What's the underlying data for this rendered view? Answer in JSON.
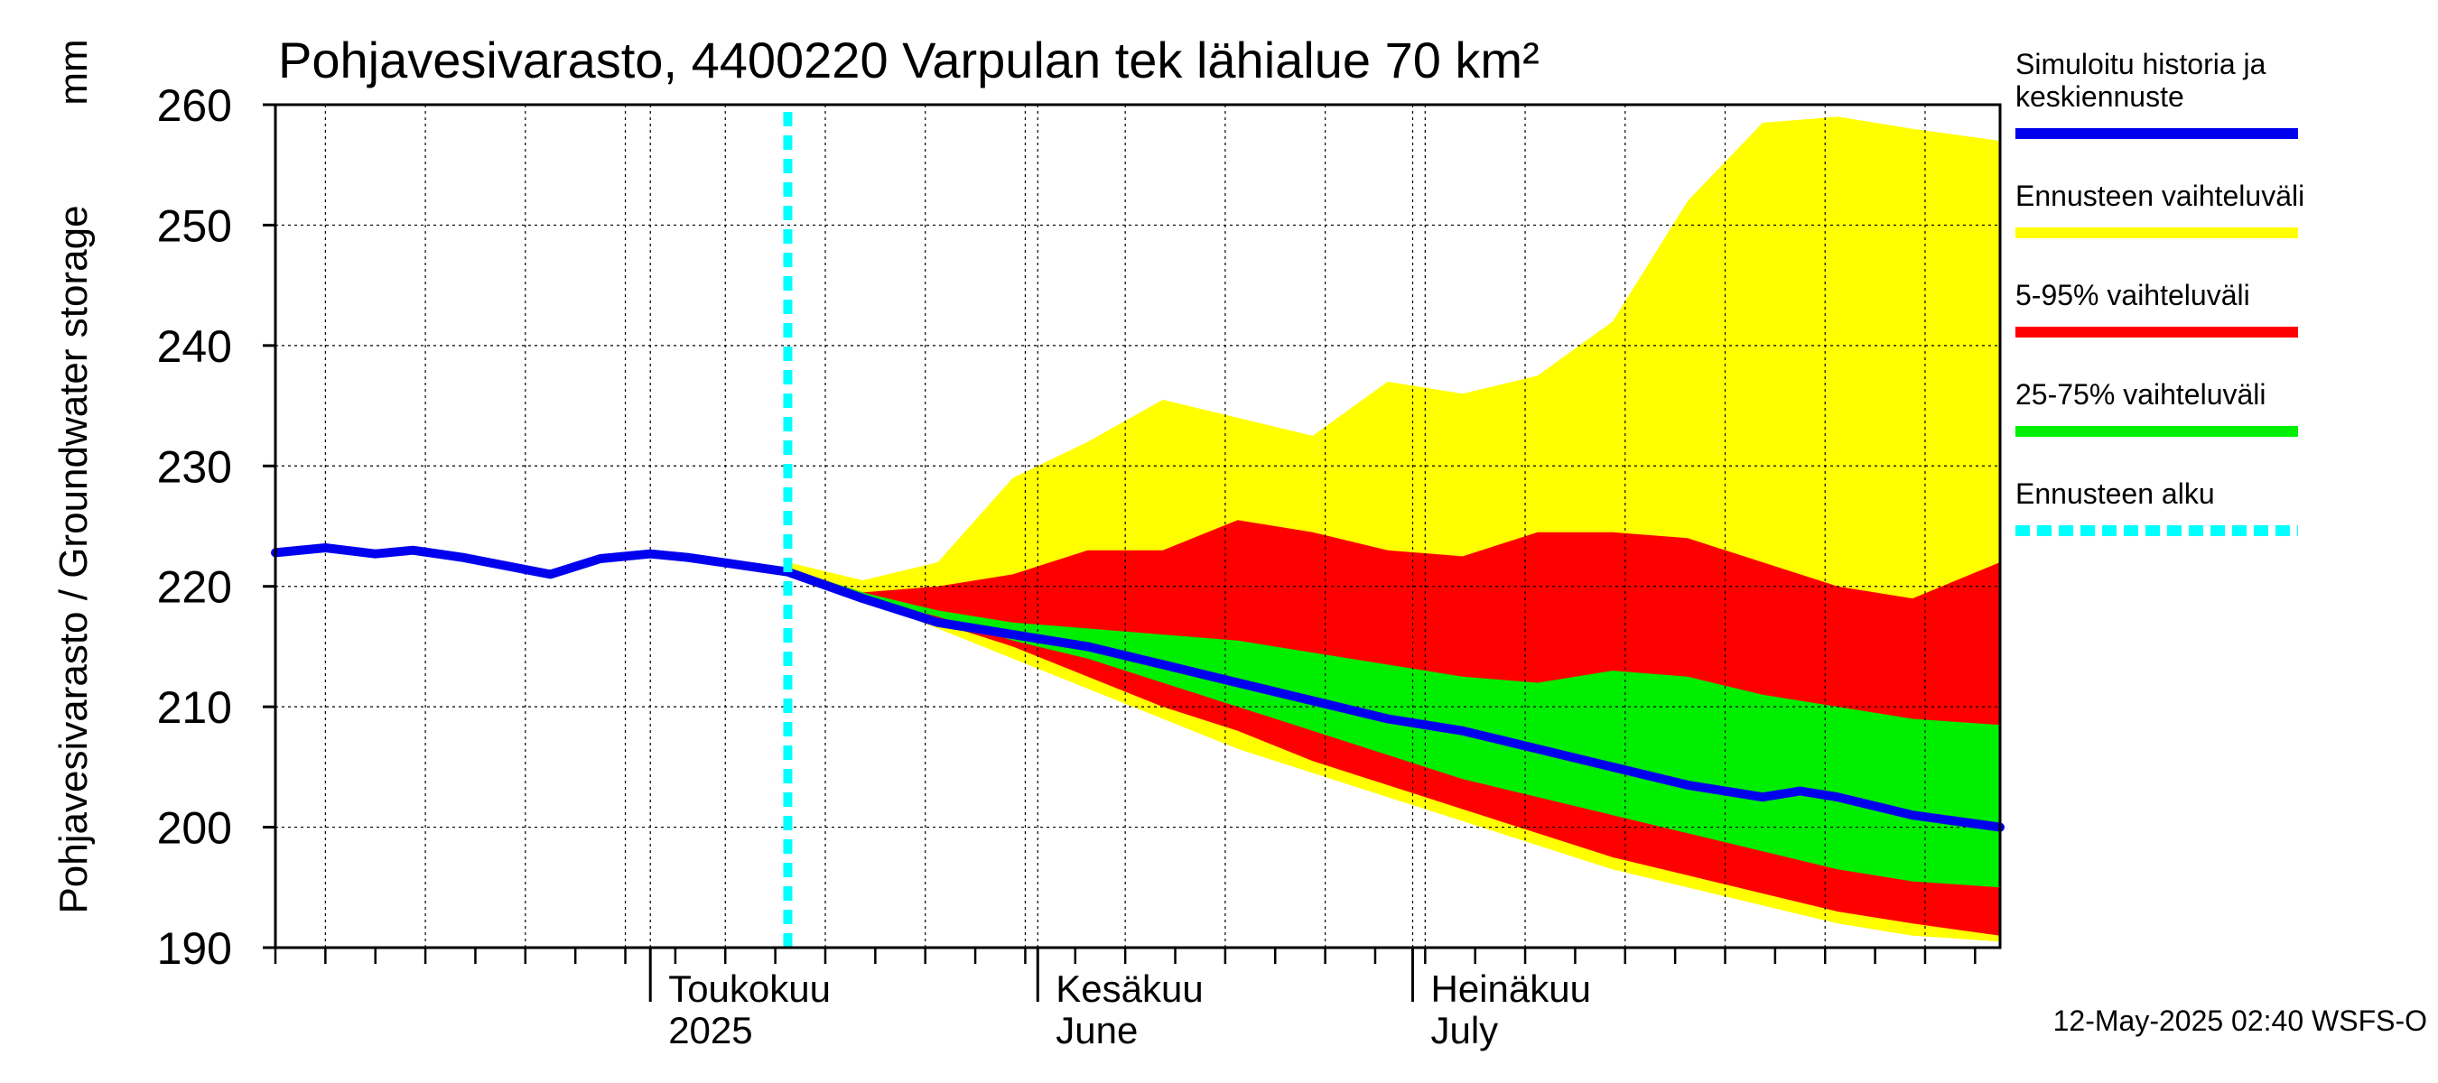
{
  "chart_data": {
    "type": "area",
    "title": "Pohjavesivarasto, 4400220 Varpulan tek lähialue 70 km²",
    "ylabel": "Pohjavesivarasto / Groundwater storage",
    "yunit": "mm",
    "ylim": [
      190,
      260
    ],
    "yticks": [
      190,
      200,
      210,
      220,
      230,
      240,
      250,
      260
    ],
    "xlim": [
      "2025-04-01",
      "2025-08-17"
    ],
    "grid": true,
    "xticks_major": [
      {
        "date": "2025-05-01",
        "label1": "Toukokuu",
        "label2": "2025"
      },
      {
        "date": "2025-06-01",
        "label1": "Kesäkuu",
        "label2": "June"
      },
      {
        "date": "2025-07-01",
        "label1": "Heinäkuu",
        "label2": "July"
      }
    ],
    "forecast_start": "2025-05-12",
    "forecast_dates": [
      "2025-05-12",
      "2025-05-18",
      "2025-05-24",
      "2025-05-30",
      "2025-06-05",
      "2025-06-11",
      "2025-06-17",
      "2025-06-23",
      "2025-06-29",
      "2025-07-05",
      "2025-07-11",
      "2025-07-17",
      "2025-07-23",
      "2025-07-29",
      "2025-08-04",
      "2025-08-10",
      "2025-08-17"
    ],
    "series": [
      {
        "name": "Ennusteen vaihteluväli",
        "kind": "band",
        "color": "#ffff00",
        "upper": [
          222.0,
          220.5,
          222.0,
          229.0,
          232.0,
          235.5,
          234.0,
          232.5,
          237.0,
          236.0,
          237.5,
          242.0,
          252.0,
          258.5,
          259.0,
          258.0,
          257.0
        ],
        "lower": [
          221.5,
          219.0,
          216.5,
          214.0,
          211.5,
          209.0,
          206.5,
          204.5,
          202.5,
          200.5,
          198.5,
          196.5,
          195.0,
          193.5,
          192.0,
          191.0,
          190.5
        ]
      },
      {
        "name": "5-95% vaihteluväli",
        "kind": "band",
        "color": "#ff0000",
        "upper": [
          221.5,
          219.5,
          220.0,
          221.0,
          223.0,
          223.0,
          225.5,
          224.5,
          223.0,
          222.5,
          224.5,
          224.5,
          224.0,
          222.0,
          220.0,
          219.0,
          222.0
        ],
        "lower": [
          221.5,
          219.0,
          217.0,
          215.0,
          212.5,
          210.0,
          208.0,
          205.5,
          203.5,
          201.5,
          199.5,
          197.5,
          196.0,
          194.5,
          193.0,
          192.0,
          191.0
        ]
      },
      {
        "name": "25-75% vaihteluväli",
        "kind": "band",
        "color": "#00ee00",
        "upper": [
          221.5,
          219.5,
          218.0,
          217.0,
          216.5,
          216.0,
          215.5,
          214.5,
          213.5,
          212.5,
          212.0,
          213.0,
          212.5,
          211.0,
          210.0,
          209.0,
          208.5
        ],
        "lower": [
          221.5,
          219.0,
          217.5,
          215.5,
          214.0,
          212.0,
          210.0,
          208.0,
          206.0,
          204.0,
          202.5,
          201.0,
          199.5,
          198.0,
          196.5,
          195.5,
          195.0
        ]
      },
      {
        "name": "Simuloitu historia ja keskiennuste",
        "kind": "line",
        "color": "#0000ee",
        "x": [
          "2025-04-01",
          "2025-04-05",
          "2025-04-09",
          "2025-04-12",
          "2025-04-16",
          "2025-04-20",
          "2025-04-23",
          "2025-04-27",
          "2025-05-01",
          "2025-05-04",
          "2025-05-08",
          "2025-05-12",
          "2025-05-18",
          "2025-05-24",
          "2025-05-30",
          "2025-06-05",
          "2025-06-11",
          "2025-06-17",
          "2025-06-23",
          "2025-06-29",
          "2025-07-05",
          "2025-07-11",
          "2025-07-17",
          "2025-07-23",
          "2025-07-29",
          "2025-08-01",
          "2025-08-04",
          "2025-08-10",
          "2025-08-17"
        ],
        "y": [
          222.8,
          223.2,
          222.7,
          223.0,
          222.4,
          221.6,
          221.0,
          222.3,
          222.7,
          222.4,
          221.8,
          221.2,
          219.0,
          217.0,
          216.0,
          215.0,
          213.5,
          212.0,
          210.5,
          209.0,
          208.0,
          206.5,
          205.0,
          203.5,
          202.5,
          203.0,
          202.5,
          201.0,
          200.0
        ]
      },
      {
        "name": "Ennusteen alku",
        "kind": "vline",
        "color": "#00ffff",
        "x": "2025-05-12"
      }
    ]
  },
  "legend": {
    "placement": "right",
    "items": [
      {
        "label": "Simuloitu historia ja keskiennuste",
        "lines": [
          "Simuloitu historia ja",
          "keskiennuste"
        ],
        "color": "#0000ee",
        "style": "solid"
      },
      {
        "label": "Ennusteen vaihteluväli",
        "lines": [
          "Ennusteen vaihteluväli"
        ],
        "color": "#ffff00",
        "style": "solid"
      },
      {
        "label": "5-95% vaihteluväli",
        "lines": [
          "5-95% vaihteluväli"
        ],
        "color": "#ff0000",
        "style": "solid"
      },
      {
        "label": "25-75% vaihteluväli",
        "lines": [
          "25-75% vaihteluväli"
        ],
        "color": "#00ee00",
        "style": "solid"
      },
      {
        "label": "Ennusteen alku",
        "lines": [
          "Ennusteen alku"
        ],
        "color": "#00ffff",
        "style": "dashed"
      }
    ]
  },
  "footer": "12-May-2025 02:40 WSFS-O"
}
